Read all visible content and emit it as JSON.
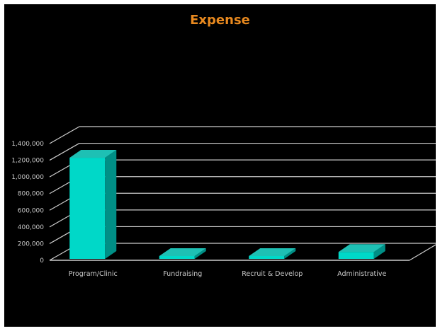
{
  "chart_data": {
    "type": "bar",
    "title": "Expense",
    "xlabel": "",
    "ylabel": "",
    "categories": [
      "Program/Clinic",
      "Fundraising",
      "Recruit & Develop",
      "Administrative"
    ],
    "values": [
      1230000,
      0,
      0,
      100000
    ],
    "ylim": [
      0,
      1400000
    ],
    "y_ticks": [
      {
        "value": 0,
        "label": "0"
      },
      {
        "value": 200000,
        "label": "200,000"
      },
      {
        "value": 400000,
        "label": "400,000"
      },
      {
        "value": 600000,
        "label": "600,000"
      },
      {
        "value": 800000,
        "label": "800,000"
      },
      {
        "value": 1000000,
        "label": "1,000,000"
      },
      {
        "value": 1200000,
        "label": "1,200,000"
      },
      {
        "value": 1400000,
        "label": "1,400,000"
      }
    ],
    "grid": true,
    "legend": "none",
    "style": "3d-column",
    "colors": {
      "bar_front": "#00d8c8",
      "bar_top": "#1ec0b4",
      "bar_side": "#008f86",
      "title": "#e8891f",
      "gridlines": "#cccccc",
      "background": "#000000"
    }
  }
}
